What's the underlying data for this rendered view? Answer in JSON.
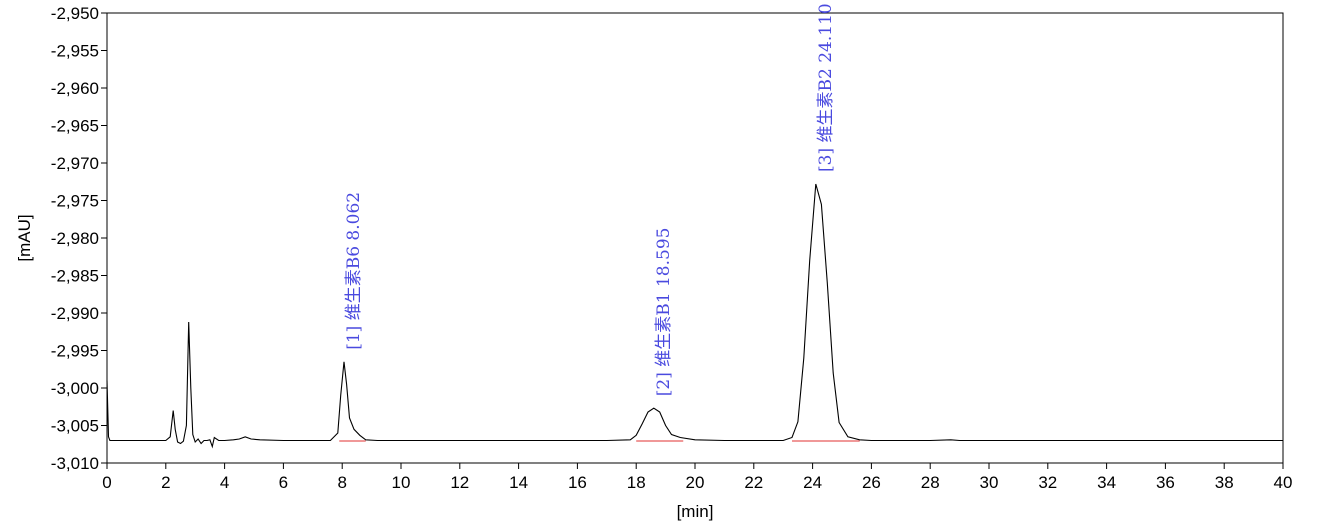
{
  "chart_data": {
    "type": "line",
    "xlabel": "[min]",
    "ylabel": "[mAU]",
    "xlim": [
      0,
      40
    ],
    "ylim": [
      -3010,
      -2950
    ],
    "x_ticks": [
      0,
      2,
      4,
      6,
      8,
      10,
      12,
      14,
      16,
      18,
      20,
      22,
      24,
      26,
      28,
      30,
      32,
      34,
      36,
      38,
      40
    ],
    "y_ticks": [
      -2950,
      -2955,
      -2960,
      -2965,
      -2970,
      -2975,
      -2980,
      -2985,
      -2990,
      -2995,
      -3000,
      -3005,
      -3010
    ],
    "y_tick_labels": [
      "-2,950",
      "-2,955",
      "-2,960",
      "-2,965",
      "-2,970",
      "-2,975",
      "-2,980",
      "-2,985",
      "-2,990",
      "-2,995",
      "-3,000",
      "-3,005",
      "-3,010"
    ],
    "grid": false,
    "baseline": -3007.0,
    "series": [
      {
        "color": "#000000",
        "x": [
          0.0,
          0.05,
          0.1,
          0.2,
          0.5,
          1.0,
          1.5,
          2.0,
          2.15,
          2.25,
          2.32,
          2.4,
          2.5,
          2.6,
          2.7,
          2.78,
          2.85,
          2.92,
          3.0,
          3.1,
          3.2,
          3.3,
          3.4,
          3.5,
          3.58,
          3.65,
          3.8,
          4.0,
          4.3,
          4.5,
          4.7,
          4.9,
          5.2,
          6.0,
          7.0,
          7.6,
          7.85,
          7.95,
          8.06,
          8.15,
          8.25,
          8.4,
          8.6,
          8.8,
          9.2,
          10.0,
          12.0,
          14.0,
          16.0,
          17.0,
          17.8,
          18.0,
          18.2,
          18.4,
          18.6,
          18.8,
          19.0,
          19.2,
          19.5,
          20.0,
          21.0,
          22.0,
          23.0,
          23.3,
          23.5,
          23.7,
          23.9,
          24.11,
          24.3,
          24.5,
          24.7,
          24.9,
          25.2,
          25.6,
          26.0,
          27.0,
          28.0,
          28.7,
          29.0,
          30.0,
          32.0,
          34.0,
          36.0,
          38.0,
          40.0
        ],
        "y": [
          -2999.0,
          -3006.5,
          -3007.0,
          -3007.0,
          -3007.0,
          -3007.0,
          -3007.0,
          -3007.0,
          -3006.5,
          -3003.0,
          -3005.5,
          -3007.2,
          -3007.4,
          -3007.1,
          -3005.0,
          -2991.2,
          -3000.0,
          -3006.2,
          -3007.2,
          -3006.8,
          -3007.4,
          -3007.0,
          -3007.0,
          -3006.9,
          -3007.8,
          -3006.6,
          -3007.0,
          -3007.0,
          -3006.9,
          -3006.8,
          -3006.5,
          -3006.8,
          -3006.9,
          -3007.0,
          -3007.0,
          -3007.0,
          -3006.0,
          -3001.0,
          -2996.5,
          -2999.5,
          -3004.0,
          -3005.5,
          -3006.3,
          -3006.9,
          -3007.0,
          -3007.0,
          -3007.0,
          -3007.0,
          -3007.0,
          -3007.0,
          -3006.9,
          -3006.3,
          -3004.8,
          -3003.2,
          -3002.7,
          -3003.2,
          -3005.0,
          -3006.2,
          -3006.6,
          -3006.9,
          -3007.0,
          -3007.0,
          -3007.0,
          -3006.6,
          -3004.5,
          -2996.0,
          -2983.0,
          -2972.8,
          -2975.5,
          -2986.0,
          -2998.0,
          -3004.6,
          -3006.5,
          -3006.9,
          -3007.0,
          -3007.0,
          -3007.0,
          -3006.9,
          -3007.0,
          -3007.0,
          -3007.0,
          -3007.0,
          -3007.0,
          -3007.0,
          -3007.0
        ]
      }
    ],
    "peaks": [
      {
        "label": "[1] 维生素B6 8.062",
        "x": 8.062,
        "y": -2996.5,
        "baseline_from": 7.9,
        "baseline_to": 8.8
      },
      {
        "label": "[2] 维生素B1 18.595",
        "x": 18.595,
        "y": -3002.7,
        "baseline_from": 18.0,
        "baseline_to": 19.6
      },
      {
        "label": "[3] 维生素B2 24.110",
        "x": 24.11,
        "y": -2972.8,
        "baseline_from": 23.3,
        "baseline_to": 25.6
      }
    ],
    "colors": {
      "trace": "#000000",
      "baseline_marks": "#e03030",
      "peak_labels": "#4a4adf"
    }
  }
}
